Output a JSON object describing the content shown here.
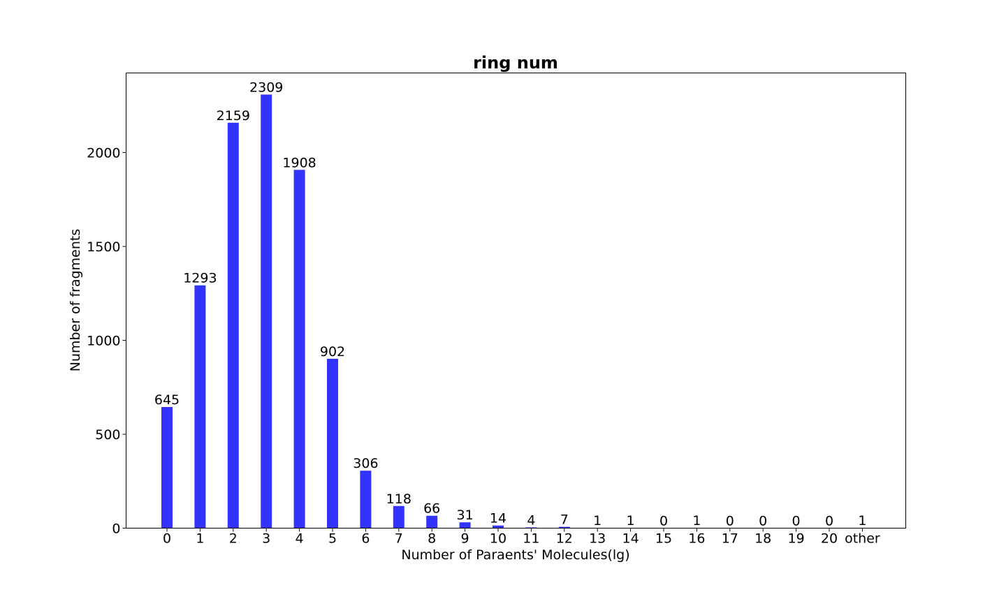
{
  "chart_data": {
    "type": "bar",
    "title": "ring num",
    "xlabel": "Number of Paraents' Molecules(lg)",
    "ylabel": "Number of fragments",
    "categories": [
      "0",
      "1",
      "2",
      "3",
      "4",
      "5",
      "6",
      "7",
      "8",
      "9",
      "10",
      "11",
      "12",
      "13",
      "14",
      "15",
      "16",
      "17",
      "18",
      "19",
      "20",
      "other"
    ],
    "values": [
      645,
      1293,
      2159,
      2309,
      1908,
      902,
      306,
      118,
      66,
      31,
      14,
      4,
      7,
      1,
      1,
      0,
      1,
      0,
      0,
      0,
      0,
      1
    ],
    "ylim": [
      0,
      2424
    ],
    "yticks": [
      0,
      500,
      1000,
      1500,
      2000
    ],
    "bar_color": "#3333ff",
    "grid": false,
    "legend": "none"
  }
}
